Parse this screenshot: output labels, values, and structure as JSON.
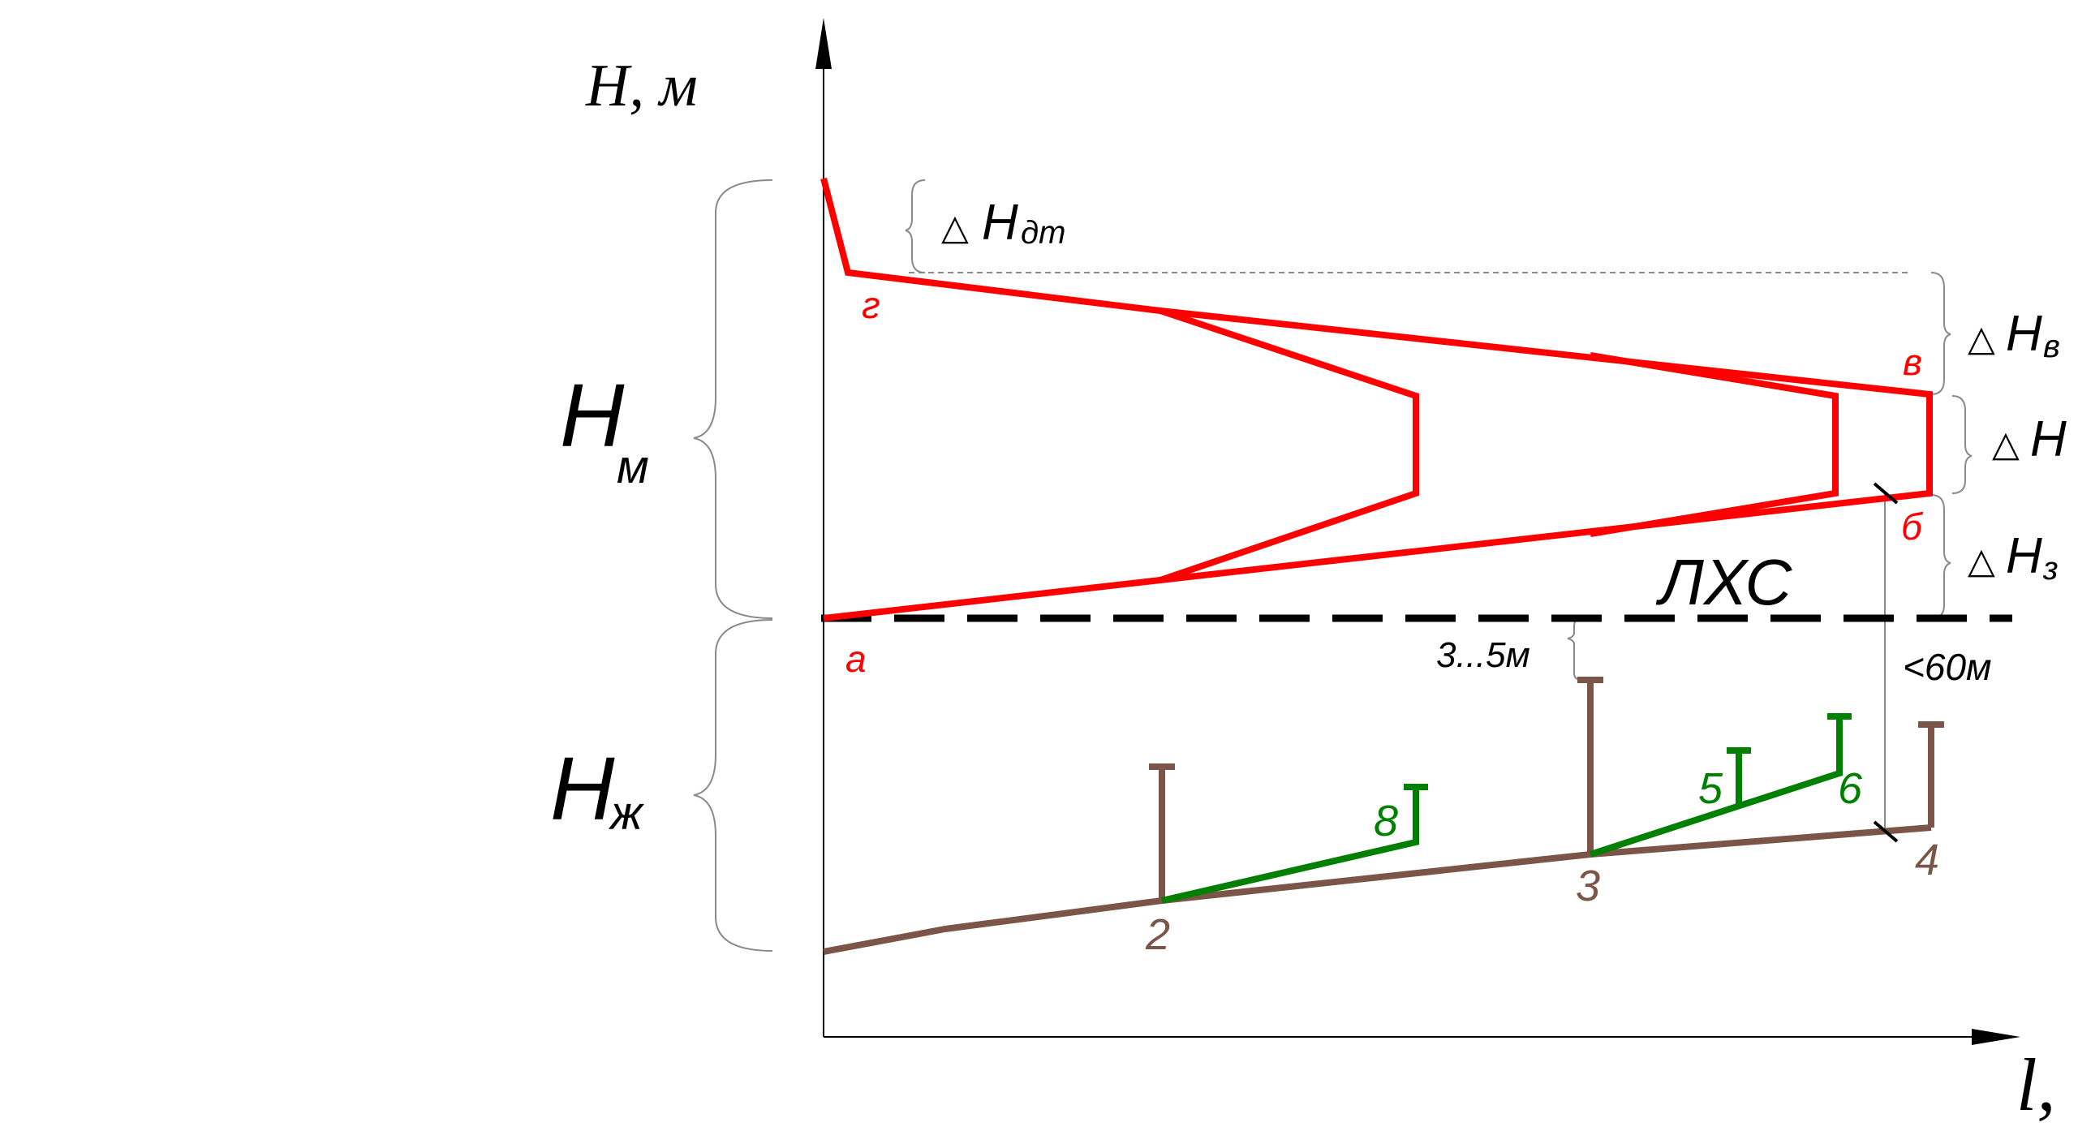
{
  "colors": {
    "axis": "#000000",
    "head_line": "#ff0000",
    "ground_main": "#7a5548",
    "ground_branch": "#008000",
    "helper": "#8a8a8a",
    "dashed": "#000000"
  },
  "axes": {
    "y_label": "H, м",
    "x_label": "l,"
  },
  "braces": {
    "hm": {
      "letter": "H",
      "sub": "м"
    },
    "hzh": {
      "letter": "H",
      "sub": "ж"
    }
  },
  "deltas": {
    "dt": {
      "symbol": "△",
      "letter": "H",
      "sub": "дт"
    },
    "v": {
      "symbol": "△",
      "letter": "H",
      "sub": "в"
    },
    "p": {
      "symbol": "△",
      "letter": "H",
      "sub": ""
    },
    "z": {
      "symbol": "△",
      "letter": "H",
      "sub": "з"
    }
  },
  "labels": {
    "lhs": "ЛХС",
    "gap": "3...5м",
    "max_len": "<60м"
  },
  "points": {
    "a": "а",
    "b": "б",
    "v": "в",
    "g": "г",
    "n2": "2",
    "n3": "3",
    "n4": "4",
    "n5": "5",
    "n6": "6",
    "n8": "8"
  }
}
